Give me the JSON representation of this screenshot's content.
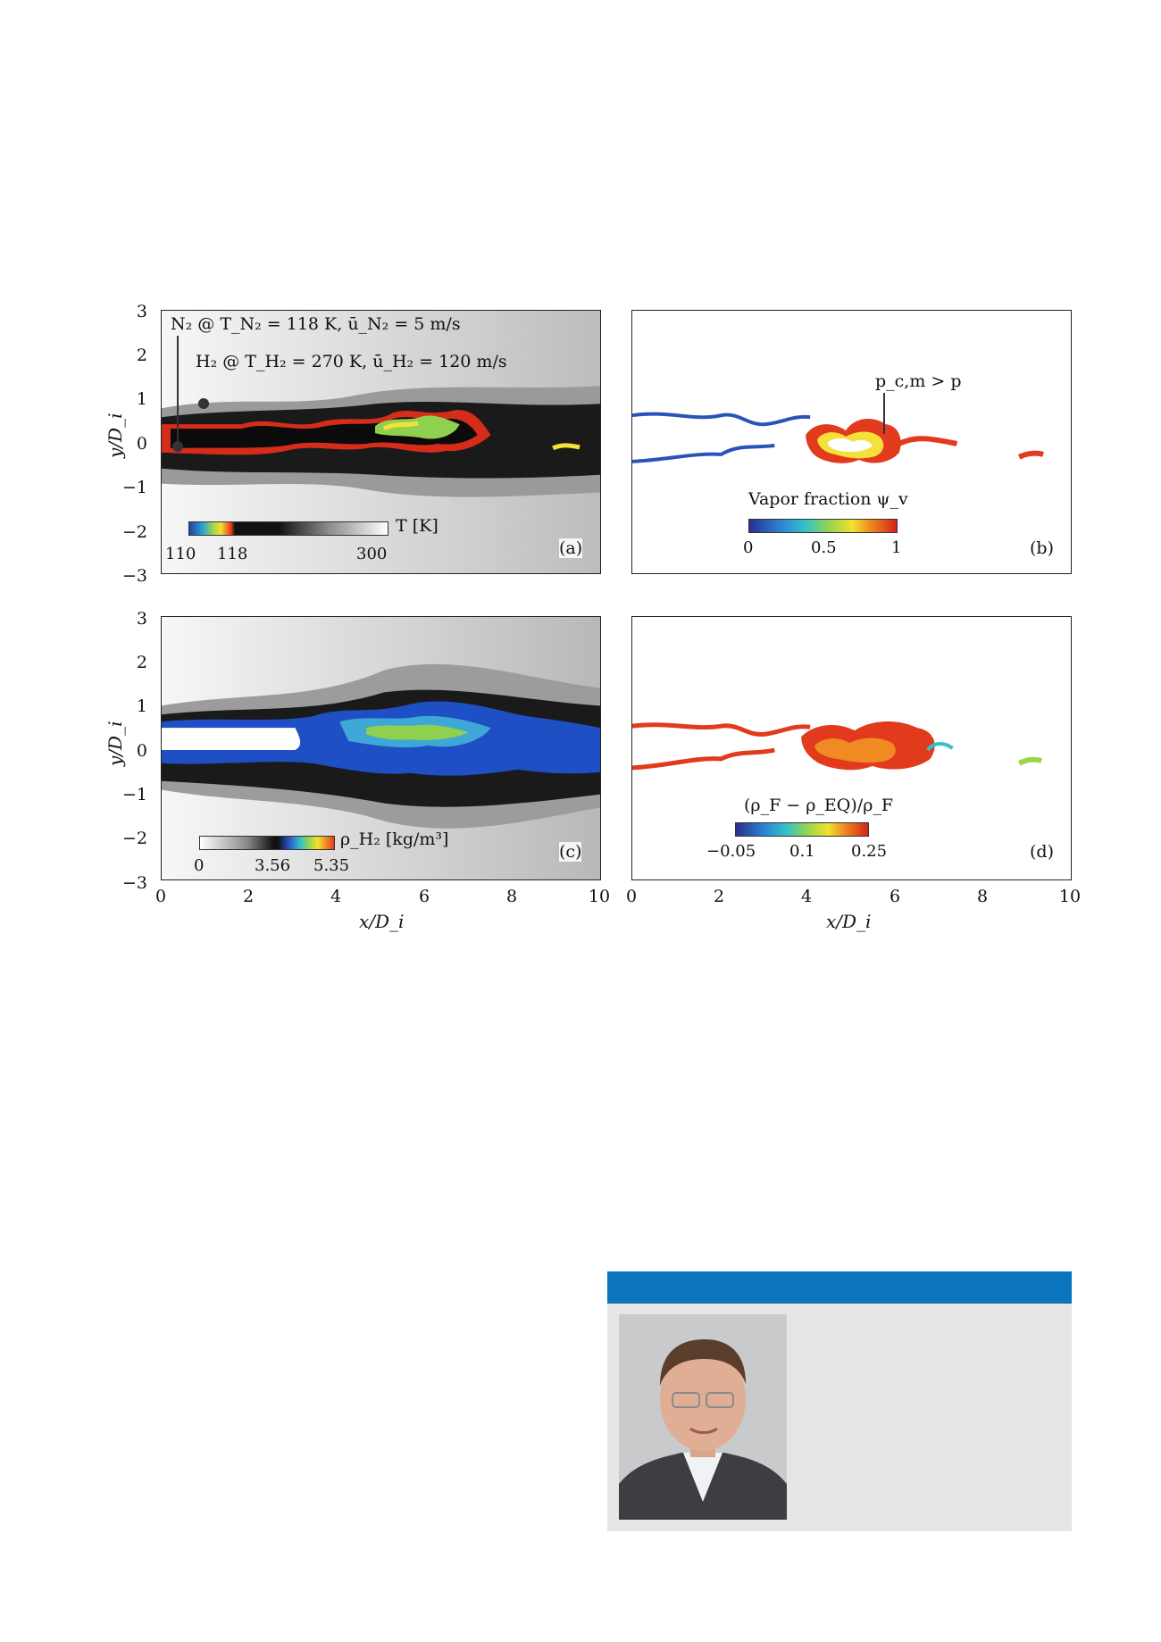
{
  "figure": {
    "yticks": [
      "3",
      "2",
      "1",
      "0",
      "−1",
      "−2",
      "−3"
    ],
    "xticks": [
      "0",
      "2",
      "4",
      "6",
      "8",
      "10"
    ],
    "ylabel": "y/D_i",
    "xlabel": "x/D_i",
    "panel_a": {
      "label": "(a)",
      "annotation_n2": "N₂ @ T_N₂ = 118 K, ū_N₂ = 5 m/s",
      "annotation_h2": "H₂ @ T_H₂ = 270 K, ū_H₂ = 120 m/s",
      "colorbar_label": "T [K]",
      "colorbar_ticks": [
        "110",
        "118",
        "300"
      ]
    },
    "panel_b": {
      "label": "(b)",
      "annotation": "p_c,m > p",
      "colorbar_label": "Vapor fraction ψ_v",
      "colorbar_ticks": [
        "0",
        "0.5",
        "1"
      ]
    },
    "panel_c": {
      "label": "(c)",
      "colorbar_label": "ρ_H₂ [kg/m³]",
      "colorbar_ticks": [
        "0",
        "3.56",
        "5.35"
      ]
    },
    "panel_d": {
      "label": "(d)",
      "colorbar_label": "(ρ_F − ρ_EQ)/ρ_F",
      "colorbar_ticks": [
        "−0.05",
        "0.1",
        "0.25"
      ]
    }
  },
  "colors": {
    "bio_header": "#0a74bc",
    "bio_box": "#e6e6e6",
    "frame": "#222222"
  },
  "photo": {
    "icon": "portrait-photo-icon"
  }
}
